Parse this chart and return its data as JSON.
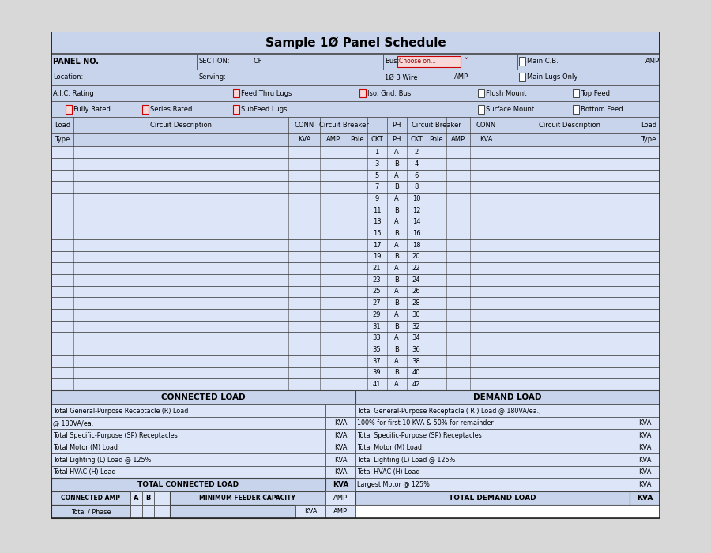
{
  "title": "Sample 1Ø Panel Schedule",
  "bg_color": "#d8d8d8",
  "card_bg": "#ffffff",
  "header_bg": "#c8d4ec",
  "cell_bg": "#dce6f8",
  "border_color": "#444444",
  "red_box_fc": "#f8d8d8",
  "red_box_ec": "#cc0000",
  "title_fontsize": 11,
  "header_fontsize": 6,
  "cell_fontsize": 6,
  "small_fontsize": 5.5,
  "circuit_rows": [
    [
      1,
      "A",
      2
    ],
    [
      3,
      "B",
      4
    ],
    [
      5,
      "A",
      6
    ],
    [
      7,
      "B",
      8
    ],
    [
      9,
      "A",
      10
    ],
    [
      11,
      "B",
      12
    ],
    [
      13,
      "A",
      14
    ],
    [
      15,
      "B",
      16
    ],
    [
      17,
      "A",
      18
    ],
    [
      19,
      "B",
      20
    ],
    [
      21,
      "A",
      22
    ],
    [
      23,
      "B",
      24
    ],
    [
      25,
      "A",
      26
    ],
    [
      27,
      "B",
      28
    ],
    [
      29,
      "A",
      30
    ],
    [
      31,
      "B",
      32
    ],
    [
      33,
      "A",
      34
    ],
    [
      35,
      "B",
      36
    ],
    [
      37,
      "A",
      38
    ],
    [
      39,
      "B",
      40
    ],
    [
      41,
      "A",
      42
    ]
  ],
  "connected_load_rows": [
    [
      "Total General-Purpose Receptacle (R) Load",
      ""
    ],
    [
      "@ 180VA/ea.",
      "KVA"
    ],
    [
      "Total Specific-Purpose (SP) Receptacles",
      "KVA"
    ],
    [
      "Total Motor (M) Load",
      "KVA"
    ],
    [
      "Total Lighting (L) Load @ 125%",
      "KVA"
    ],
    [
      "Total HVAC (H) Load",
      "KVA"
    ]
  ],
  "demand_load_rows": [
    [
      "Total General-Purpose Receptacle ( R ) Load @ 180VA/ea.,",
      ""
    ],
    [
      "100% for first 10 KVA & 50% for remainder",
      "KVA"
    ],
    [
      "Total Specific-Purpose (SP) Receptacles",
      "KVA"
    ],
    [
      "Total Motor (M) Load",
      "KVA"
    ],
    [
      "Total Lighting (L) Load @ 125%",
      "KVA"
    ],
    [
      "Total HVAC (H) Load",
      "KVA"
    ]
  ]
}
